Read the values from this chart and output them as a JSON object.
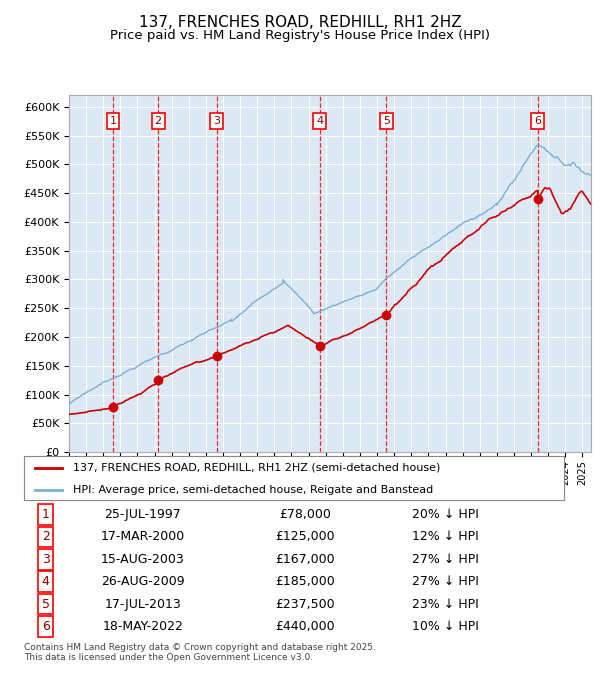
{
  "title": "137, FRENCHES ROAD, REDHILL, RH1 2HZ",
  "subtitle": "Price paid vs. HM Land Registry's House Price Index (HPI)",
  "title_fontsize": 11,
  "subtitle_fontsize": 9.5,
  "plot_bg_color": "#dce9f5",
  "red_color": "#cc0000",
  "blue_color": "#7aafd4",
  "ylim": [
    0,
    620000
  ],
  "yticks": [
    0,
    50000,
    100000,
    150000,
    200000,
    250000,
    300000,
    350000,
    400000,
    450000,
    500000,
    550000,
    600000
  ],
  "ytick_labels": [
    "£0",
    "£50K",
    "£100K",
    "£150K",
    "£200K",
    "£250K",
    "£300K",
    "£350K",
    "£400K",
    "£450K",
    "£500K",
    "£550K",
    "£600K"
  ],
  "sale_dates_x": [
    1997.57,
    2000.21,
    2003.62,
    2009.65,
    2013.54,
    2022.38
  ],
  "sale_prices_y": [
    78000,
    125000,
    167000,
    185000,
    237500,
    440000
  ],
  "sale_labels": [
    "1",
    "2",
    "3",
    "4",
    "5",
    "6"
  ],
  "legend_red": "137, FRENCHES ROAD, REDHILL, RH1 2HZ (semi-detached house)",
  "legend_blue": "HPI: Average price, semi-detached house, Reigate and Banstead",
  "table_rows": [
    [
      "1",
      "25-JUL-1997",
      "£78,000",
      "20% ↓ HPI"
    ],
    [
      "2",
      "17-MAR-2000",
      "£125,000",
      "12% ↓ HPI"
    ],
    [
      "3",
      "15-AUG-2003",
      "£167,000",
      "27% ↓ HPI"
    ],
    [
      "4",
      "26-AUG-2009",
      "£185,000",
      "27% ↓ HPI"
    ],
    [
      "5",
      "17-JUL-2013",
      "£237,500",
      "23% ↓ HPI"
    ],
    [
      "6",
      "18-MAY-2022",
      "£440,000",
      "10% ↓ HPI"
    ]
  ],
  "footnote": "Contains HM Land Registry data © Crown copyright and database right 2025.\nThis data is licensed under the Open Government Licence v3.0.",
  "xmin": 1995,
  "xmax": 2025.5
}
